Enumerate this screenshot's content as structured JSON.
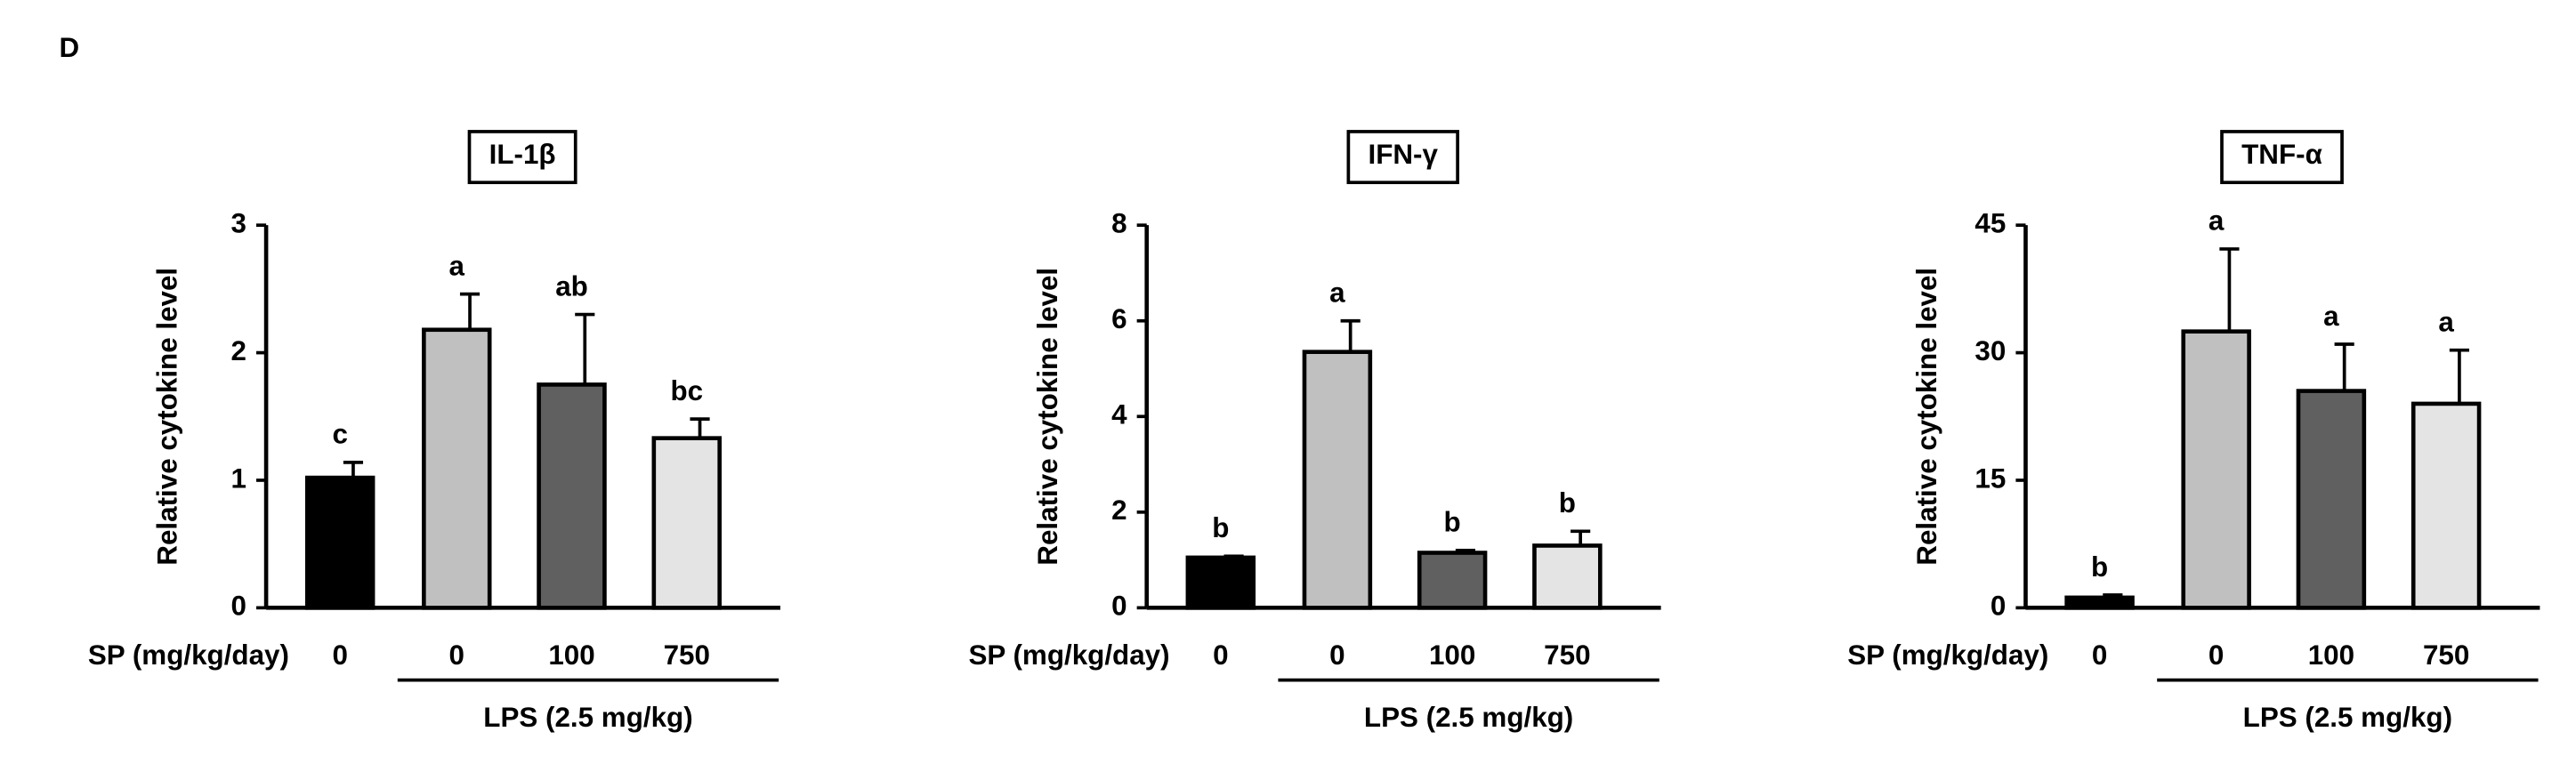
{
  "panel_label": "D",
  "chart_data": [
    {
      "type": "bar",
      "title": "IL-1β",
      "ylabel": "Relative cytokine level",
      "xlabel": "SP (mg/kg/day)",
      "group_label": "LPS (2.5 mg/kg)",
      "categories": [
        "0",
        "0",
        "100",
        "750"
      ],
      "values": [
        1.02,
        2.18,
        1.75,
        1.33
      ],
      "errors": [
        0.12,
        0.28,
        0.55,
        0.15
      ],
      "letters": [
        "c",
        "a",
        "ab",
        "bc"
      ],
      "colors": [
        "#000000",
        "#c0c0c0",
        "#606060",
        "#e4e4e4"
      ],
      "ylim": [
        0,
        3
      ],
      "yticks": [
        0,
        1,
        2,
        3
      ]
    },
    {
      "type": "bar",
      "title": "IFN-γ",
      "ylabel": "Relative cytokine level",
      "xlabel": "SP (mg/kg/day)",
      "group_label": "LPS (2.5 mg/kg)",
      "categories": [
        "0",
        "0",
        "100",
        "750"
      ],
      "values": [
        1.05,
        5.35,
        1.15,
        1.3
      ],
      "errors": [
        0.03,
        0.65,
        0.05,
        0.3
      ],
      "letters": [
        "b",
        "a",
        "b",
        "b"
      ],
      "colors": [
        "#000000",
        "#c0c0c0",
        "#606060",
        "#e4e4e4"
      ],
      "ylim": [
        0,
        8
      ],
      "yticks": [
        0,
        2,
        4,
        6,
        8
      ]
    },
    {
      "type": "bar",
      "title": "TNF-α",
      "ylabel": "Relative cytokine level",
      "xlabel": "SP (mg/kg/day)",
      "group_label": "LPS (2.5 mg/kg)",
      "categories": [
        "0",
        "0",
        "100",
        "750"
      ],
      "values": [
        1.2,
        32.5,
        25.5,
        24
      ],
      "errors": [
        0.3,
        9.7,
        5.5,
        6.3
      ],
      "letters": [
        "b",
        "a",
        "a",
        "a"
      ],
      "colors": [
        "#000000",
        "#c0c0c0",
        "#606060",
        "#e4e4e4"
      ],
      "ylim": [
        0,
        45
      ],
      "yticks": [
        0,
        15,
        30,
        45
      ]
    }
  ]
}
